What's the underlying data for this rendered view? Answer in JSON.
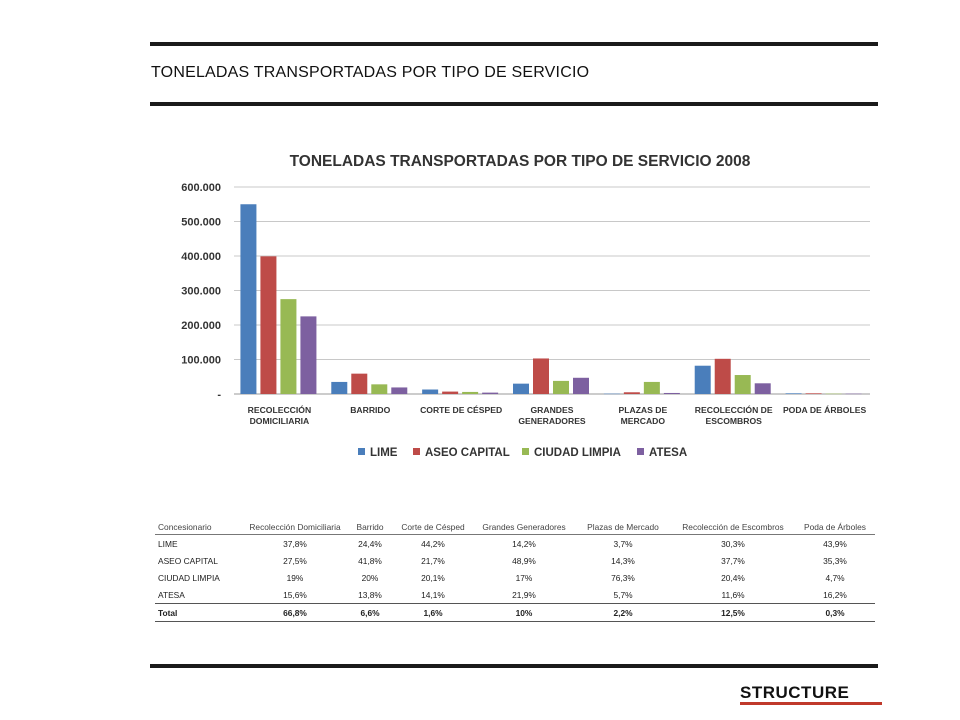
{
  "page": {
    "title": "TONELADAS TRANSPORTADAS POR TIPO DE SERVICIO",
    "logo": "STRUCTURE"
  },
  "chart_data": {
    "type": "bar",
    "title": "TONELADAS TRANSPORTADAS POR TIPO DE SERVICIO 2008",
    "xlabel": "",
    "ylabel": "",
    "ylim": [
      0,
      600000
    ],
    "yticks": [
      0,
      100000,
      200000,
      300000,
      400000,
      500000,
      600000
    ],
    "ytick_labels": [
      "-",
      "100.000",
      "200.000",
      "300.000",
      "400.000",
      "500.000",
      "600.000"
    ],
    "grid": true,
    "legend_position": "bottom",
    "categories": [
      [
        "RECOLECCIÓN",
        "DOMICILIARIA"
      ],
      [
        "BARRIDO"
      ],
      [
        "CORTE DE CÉSPED"
      ],
      [
        "GRANDES",
        "GENERADORES"
      ],
      [
        "PLAZAS DE",
        "MERCADO"
      ],
      [
        "RECOLECCIÓN DE",
        "ESCOMBROS"
      ],
      [
        "PODA DE ÁRBOLES"
      ]
    ],
    "series": [
      {
        "name": "LIME",
        "color": "#4a7ebb",
        "values": [
          550000,
          35000,
          13000,
          30000,
          1000,
          82000,
          2000
        ]
      },
      {
        "name": "ASEO CAPITAL",
        "color": "#be4b48",
        "values": [
          399000,
          59000,
          7000,
          103000,
          5000,
          102000,
          2000
        ]
      },
      {
        "name": "CIUDAD LIMPIA",
        "color": "#98b954",
        "values": [
          275000,
          28000,
          6000,
          38000,
          35000,
          55000,
          1000
        ]
      },
      {
        "name": "ATESA",
        "color": "#7d60a0",
        "values": [
          225000,
          19000,
          4000,
          47000,
          3000,
          31000,
          1000
        ]
      }
    ]
  },
  "table": {
    "headers": [
      "Concesionario",
      "Recolección Domiciliaria",
      "Barrido",
      "Corte de Césped",
      "Grandes Generadores",
      "Plazas de Mercado",
      "Recolección de Escombros",
      "Poda de Árboles"
    ],
    "rows": [
      [
        "LIME",
        "37,8%",
        "24,4%",
        "44,2%",
        "14,2%",
        "3,7%",
        "30,3%",
        "43,9%"
      ],
      [
        "ASEO CAPITAL",
        "27,5%",
        "41,8%",
        "21,7%",
        "48,9%",
        "14,3%",
        "37,7%",
        "35,3%"
      ],
      [
        "CIUDAD LIMPIA",
        "19%",
        "20%",
        "20,1%",
        "17%",
        "76,3%",
        "20,4%",
        "4,7%"
      ],
      [
        "ATESA",
        "15,6%",
        "13,8%",
        "14,1%",
        "21,9%",
        "5,7%",
        "11,6%",
        "16,2%"
      ]
    ],
    "total": [
      "Total",
      "66,8%",
      "6,6%",
      "1,6%",
      "10%",
      "2,2%",
      "12,5%",
      "0,3%"
    ]
  }
}
